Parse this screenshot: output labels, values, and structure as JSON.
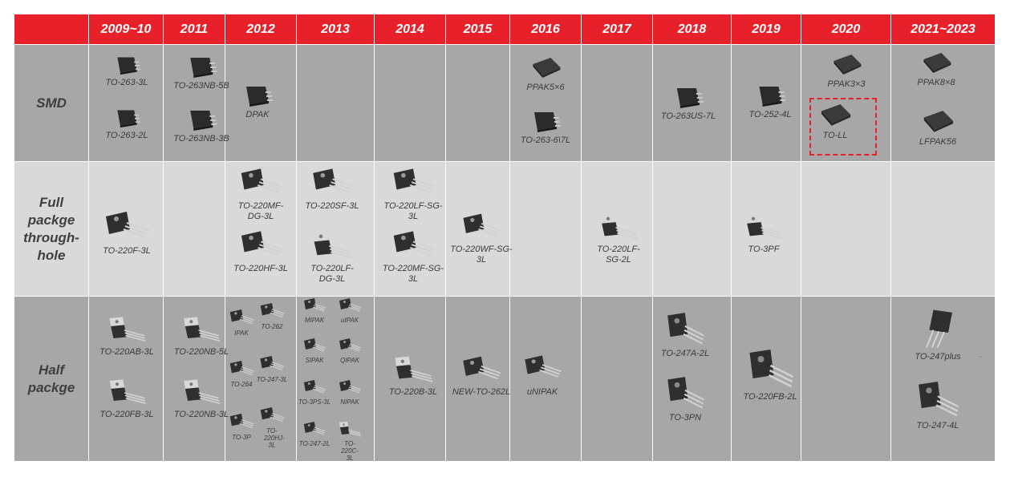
{
  "header": {
    "corner": "",
    "years": [
      "2009~10",
      "2011",
      "2012",
      "2013",
      "2014",
      "2015",
      "2016",
      "2017",
      "2018",
      "2019",
      "2020",
      "2021~2023"
    ]
  },
  "rows": {
    "smd": "SMD",
    "full": "Full packge through-hole",
    "half": "Half packge"
  },
  "packages": {
    "smd": {
      "c2009a": "TO-263-3L",
      "c2009b": "TO-263-2L",
      "c2011a": "TO-263NB-5B",
      "c2011b": "TO-263NB-3B",
      "c2012": "DPAK",
      "c2016a": "PPAK5×6",
      "c2016b": "TO-263-6\\7L",
      "c2018": "TO-263US-7L",
      "c2019": "TO-252-4L",
      "c2020a": "PPAK3×3",
      "c2020b": "TO-LL",
      "c2021a": "PPAK8×8",
      "c2021b": "LFPAK56"
    },
    "full": {
      "c2009": "TO-220F-3L",
      "c2012a": "TO-220MF-DG-3L",
      "c2012b": "TO-220HF-3L",
      "c2013a": "TO-220SF-3L",
      "c2013b": "TO-220LF-DG-3L",
      "c2014a": "TO-220LF-SG-3L",
      "c2014b": "TO-220MF-SG-3L",
      "c2015": "TO-220WF-SG-3L",
      "c2017": "TO-220LF-SG-2L",
      "c2019": "TO-3PF"
    },
    "half": {
      "c2009a": "TO-220AB-3L",
      "c2009b": "TO-220FB-3L",
      "c2011a": "TO-220NB-5L",
      "c2011b": "TO-220NB-3L",
      "c2012a": "IPAK",
      "c2012b": "TO-262",
      "c2012c": "TO-264",
      "c2012d": "TO-247-3L",
      "c2012e": "TO-3P",
      "c2012f": "TO-220HJ-3L",
      "c2013a": "MIPAK",
      "c2013b": "uIPAK",
      "c2013c": "SIPAK",
      "c2013d": "QIPAK",
      "c2013e": "TO-3PS-3L",
      "c2013f": "NIPAK",
      "c2013g": "TO-247-2L",
      "c2013h": "TO-220C-3L",
      "c2014": "TO-220B-3L",
      "c2015": "NEW-TO-262L",
      "c2016": "uNIPAK",
      "c2018a": "TO-247A-2L",
      "c2018b": "TO-3PN",
      "c2019": "TO-220FB-2L",
      "c2021a": "TO-247plus",
      "c2021b": "TO-247-4L"
    }
  },
  "colors": {
    "header_bg": "#e8202a",
    "smd_bg": "#a7a7a7",
    "full_bg": "#d9d9d9",
    "half_bg": "#a7a7a7",
    "highlight": "#e8202a"
  }
}
